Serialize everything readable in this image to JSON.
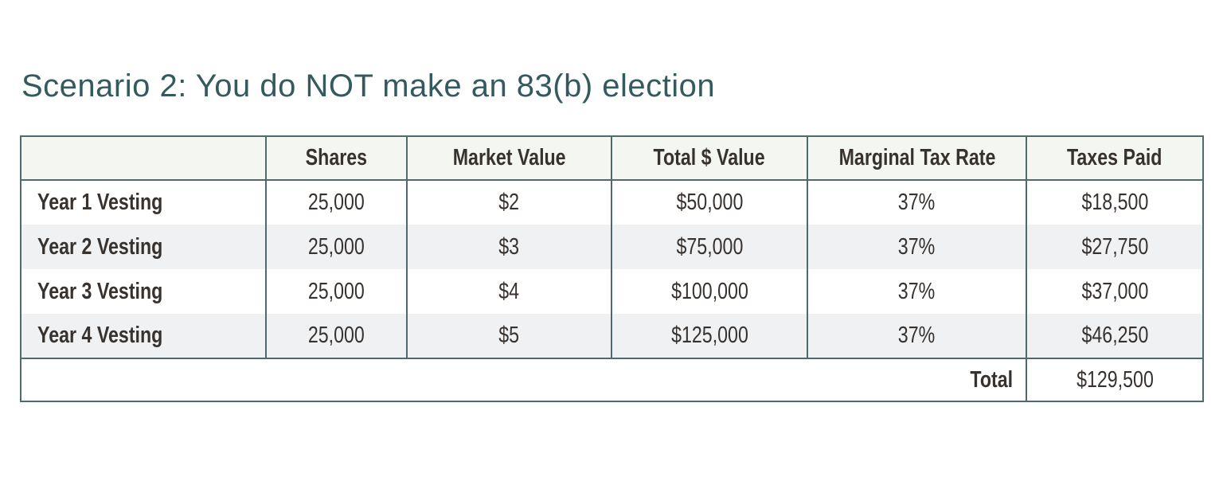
{
  "title": "Scenario 2: You do NOT make an 83(b) election",
  "colors": {
    "title_text": "#355a5e",
    "table_border": "#4d6a6d",
    "body_text": "#38322f",
    "header_background": "#f4f6f1",
    "stripe_background": "#eff1f3"
  },
  "table": {
    "headers": [
      "",
      "Shares",
      "Market Value",
      "Total $ Value",
      "Marginal Tax Rate",
      "Taxes Paid"
    ],
    "rows": [
      {
        "label": "Year 1 Vesting",
        "shares": "25,000",
        "market_value": "$2",
        "total_value": "$50,000",
        "marginal_tax_rate": "37%",
        "taxes_paid": "$18,500"
      },
      {
        "label": "Year 2 Vesting",
        "shares": "25,000",
        "market_value": "$3",
        "total_value": "$75,000",
        "marginal_tax_rate": "37%",
        "taxes_paid": "$27,750"
      },
      {
        "label": "Year 3 Vesting",
        "shares": "25,000",
        "market_value": "$4",
        "total_value": "$100,000",
        "marginal_tax_rate": "37%",
        "taxes_paid": "$37,000"
      },
      {
        "label": "Year 4 Vesting",
        "shares": "25,000",
        "market_value": "$5",
        "total_value": "$125,000",
        "marginal_tax_rate": "37%",
        "taxes_paid": "$46,250"
      }
    ],
    "footer": {
      "label": "Total",
      "value": "$129,500"
    }
  }
}
